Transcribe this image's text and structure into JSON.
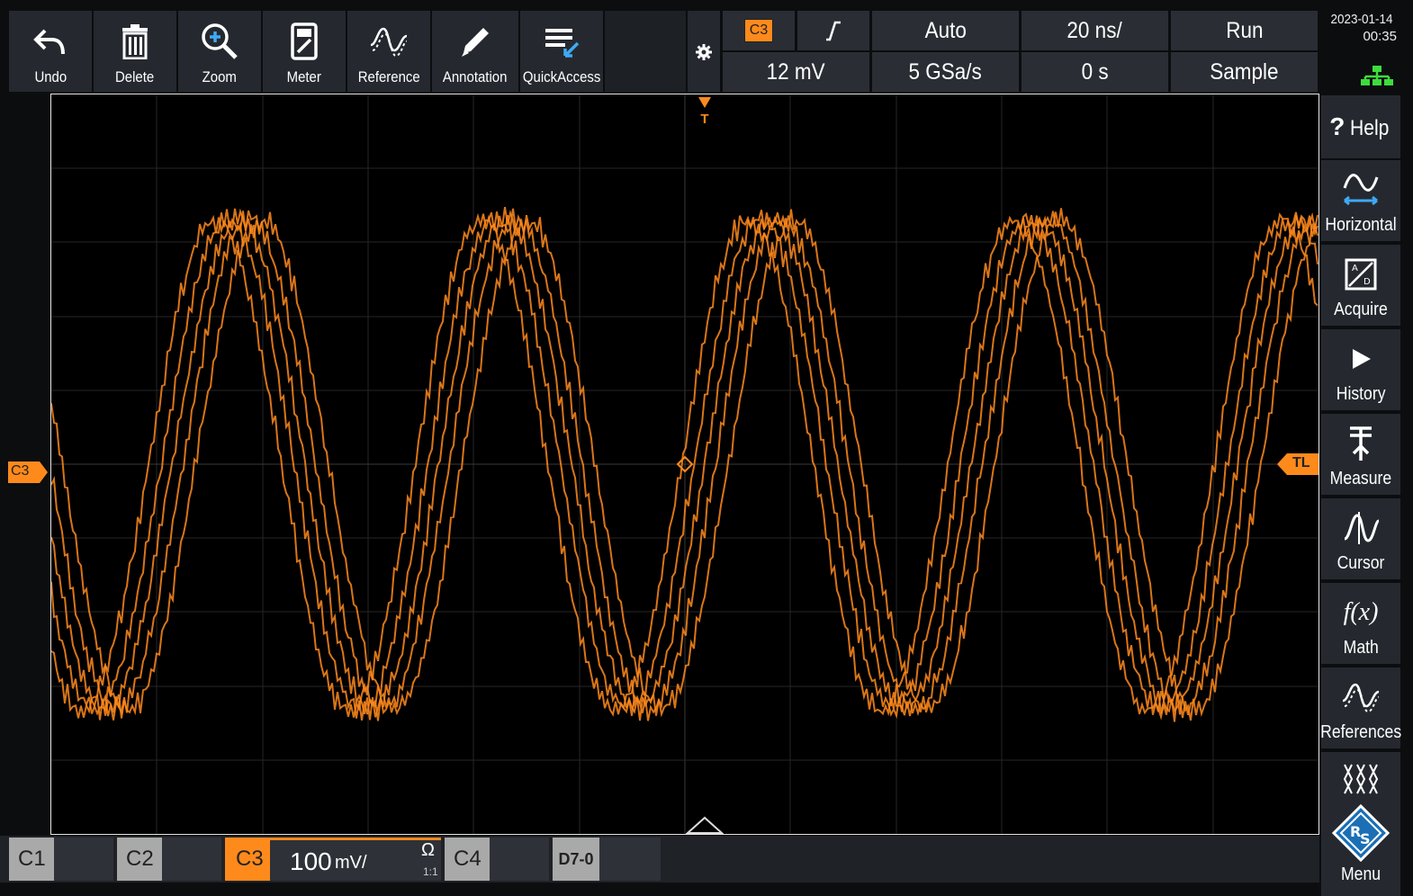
{
  "toolbar": {
    "buttons": [
      {
        "label": "Undo",
        "icon": "undo-icon"
      },
      {
        "label": "Delete",
        "icon": "trash-icon"
      },
      {
        "label": "Zoom",
        "icon": "zoom-icon"
      },
      {
        "label": "Meter",
        "icon": "meter-icon"
      },
      {
        "label": "Reference",
        "icon": "reference-icon"
      },
      {
        "label": "Annotation",
        "icon": "pencil-icon"
      },
      {
        "label": "QuickAccess",
        "icon": "quick-access-icon"
      }
    ]
  },
  "trigger": {
    "source": "C3",
    "slope_icon": "rising-edge-icon",
    "mode": "Auto",
    "level": "12 mV",
    "sample_rate": "5 GSa/s",
    "timebase": "20 ns/",
    "position": "0 s",
    "run_state": "Run",
    "acq_mode": "Sample"
  },
  "status": {
    "date": "2023-01-14",
    "time": "00:35",
    "network_icon": "network-icon"
  },
  "right_panel": {
    "items": [
      {
        "label": "Help",
        "icon": "help-icon"
      },
      {
        "label": "Horizontal",
        "icon": "horizontal-icon"
      },
      {
        "label": "Acquire",
        "icon": "acquire-icon"
      },
      {
        "label": "History",
        "icon": "play-icon"
      },
      {
        "label": "Measure",
        "icon": "measure-icon"
      },
      {
        "label": "Cursor",
        "icon": "cursor-icon"
      },
      {
        "label": "Math",
        "icon": "math-icon"
      },
      {
        "label": "References",
        "icon": "references-icon"
      },
      {
        "label": "Menu",
        "icon": "rs-logo-icon"
      }
    ],
    "help_mark": "?",
    "math_glyph": "f(x)"
  },
  "waveform": {
    "channel_marker": "C3",
    "trigger_level_marker": "TL",
    "trigger_marker": "T",
    "color": "#ff8a1c"
  },
  "channels": {
    "c1": "C1",
    "c2": "C2",
    "c3": "C3",
    "c3_scale_value": "100",
    "c3_scale_unit": "mV/",
    "c3_impedance": "Ω",
    "c3_probe": "1:1",
    "c4": "C4",
    "digital": "D7-0"
  },
  "colors": {
    "accent": "#ff8a1c",
    "panel": "#25292f",
    "grid": "#262626"
  }
}
